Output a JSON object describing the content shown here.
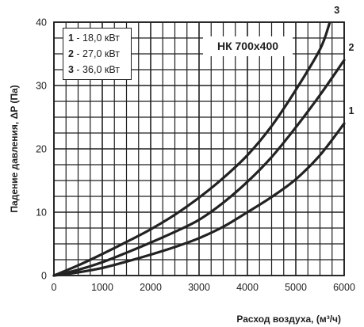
{
  "chart_data": {
    "type": "line",
    "title": "НК 700x400",
    "xlabel": "Расход воздуха, (м³/ч)",
    "ylabel": "Падение давления, ΔP (Па)",
    "xlim": [
      0,
      6000
    ],
    "ylim": [
      0,
      40
    ],
    "x_ticks": [
      "0",
      "1000",
      "2000",
      "3000",
      "4000",
      "5000",
      "6000"
    ],
    "y_ticks": [
      "0",
      "10",
      "20",
      "30",
      "40"
    ],
    "x_minor_step": 250,
    "y_minor_step": 2.5,
    "grid": true,
    "legend": [
      {
        "num": "1",
        "text": " - 18,0 кВт"
      },
      {
        "num": "2",
        "text": " - 27,0 кВт"
      },
      {
        "num": "3",
        "text": " - 36,0 кВт"
      }
    ],
    "series": [
      {
        "name": "1",
        "x": [
          0,
          500,
          1000,
          1500,
          2000,
          2500,
          3000,
          3500,
          4000,
          4500,
          5000,
          5500,
          6000
        ],
        "y": [
          0,
          0.5,
          1.2,
          2.2,
          3.3,
          4.5,
          5.9,
          7.7,
          10.0,
          12.4,
          15.2,
          19.0,
          24.0
        ]
      },
      {
        "name": "2",
        "x": [
          0,
          500,
          1000,
          1500,
          2000,
          2500,
          3000,
          3500,
          4000,
          4500,
          5000,
          5500,
          6000
        ],
        "y": [
          0,
          0.9,
          2.1,
          3.6,
          5.2,
          6.9,
          8.8,
          11.5,
          14.8,
          18.7,
          23.4,
          28.5,
          34.0
        ]
      },
      {
        "name": "3",
        "x": [
          0,
          500,
          1000,
          1500,
          2000,
          2500,
          3000,
          3500,
          4000,
          4500,
          5000,
          5500,
          5500,
          5700
        ],
        "y": [
          0,
          1.6,
          3.4,
          5.3,
          7.3,
          9.6,
          12.3,
          15.4,
          19.0,
          23.6,
          29.3,
          35.7,
          35.7,
          39.9
        ]
      }
    ],
    "series_labels": [
      "1",
      "2",
      "3"
    ]
  }
}
